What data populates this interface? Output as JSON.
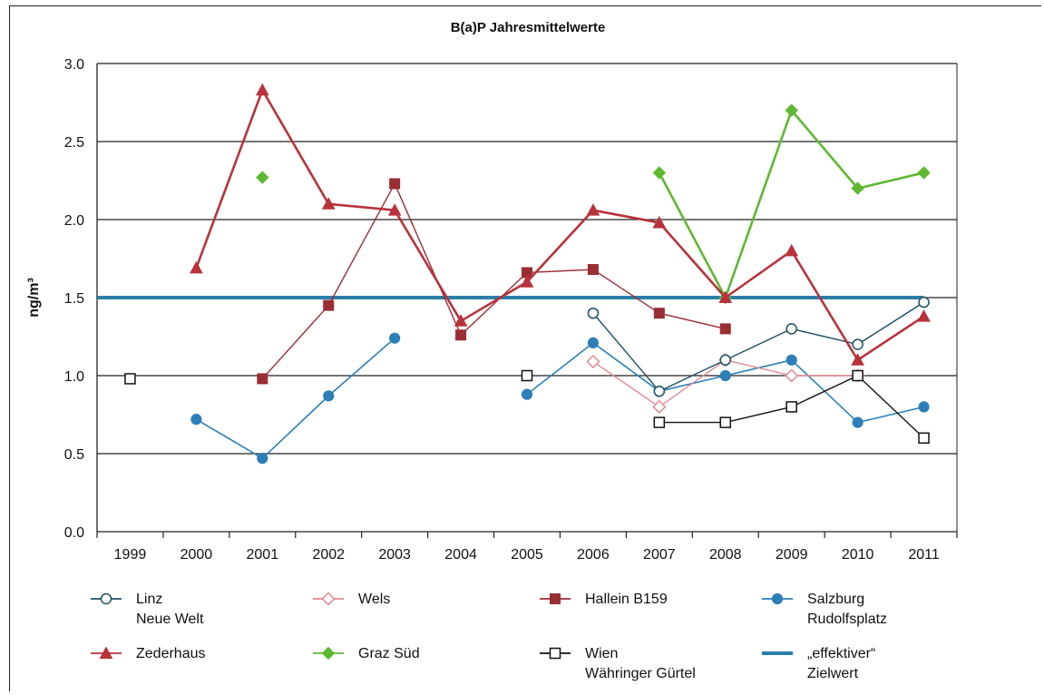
{
  "chart_data": {
    "type": "line",
    "title": "B(a)P Jahresmittelwerte",
    "ylabel": "ng/m³",
    "xlabel": "",
    "categories": [
      "1999",
      "2000",
      "2001",
      "2002",
      "2003",
      "2004",
      "2005",
      "2006",
      "2007",
      "2008",
      "2009",
      "2010",
      "2011"
    ],
    "ylim": [
      0,
      3
    ],
    "yticks": [
      "0.0",
      "0.5",
      "1.0",
      "1.5",
      "2.0",
      "2.5",
      "3.0"
    ],
    "grid": true,
    "legend_position": "bottom",
    "target_value": 1.5,
    "series": [
      {
        "name": "Linz\nNeue Welt",
        "color": "#1f4e5f",
        "marker": "circle-open",
        "values": [
          null,
          null,
          null,
          null,
          null,
          null,
          null,
          1.4,
          0.9,
          1.1,
          1.3,
          1.2,
          1.47
        ]
      },
      {
        "name": "Wels",
        "color": "#e08a90",
        "marker": "diamond-open",
        "values": [
          null,
          null,
          null,
          null,
          null,
          null,
          null,
          1.09,
          0.8,
          1.1,
          1.0,
          1.0,
          null
        ]
      },
      {
        "name": "Hallein B159",
        "color": "#9b2d35",
        "marker": "square",
        "values": [
          null,
          null,
          0.98,
          1.45,
          2.23,
          1.26,
          1.66,
          1.68,
          1.4,
          1.3,
          null,
          null,
          null
        ]
      },
      {
        "name": "Salzburg\nRudolfsplatz",
        "color": "#2e7fb8",
        "marker": "circle",
        "values": [
          null,
          0.72,
          0.47,
          0.87,
          1.24,
          null,
          0.88,
          1.21,
          0.9,
          1.0,
          1.1,
          0.7,
          0.8
        ]
      },
      {
        "name": "Zederhaus",
        "color": "#b8323c",
        "marker": "triangle",
        "values": [
          null,
          1.69,
          2.83,
          2.1,
          2.06,
          1.35,
          1.6,
          2.06,
          1.98,
          1.5,
          1.8,
          1.1,
          1.38
        ]
      },
      {
        "name": "Graz Süd",
        "color": "#5fb832",
        "marker": "diamond",
        "values": [
          null,
          null,
          2.27,
          null,
          null,
          null,
          null,
          null,
          2.3,
          1.5,
          2.7,
          2.2,
          2.3
        ]
      },
      {
        "name": "Wien\nWähringer Gürtel",
        "color": "#111111",
        "marker": "square-open",
        "values": [
          0.98,
          null,
          null,
          null,
          null,
          null,
          1.0,
          null,
          0.7,
          0.7,
          0.8,
          1.0,
          0.6
        ]
      },
      {
        "name": "„effektiver“\nZielwert",
        "color": "#2a7fa8",
        "marker": "none",
        "values": [
          1.5,
          1.5,
          1.5,
          1.5,
          1.5,
          1.5,
          1.5,
          1.5,
          1.5,
          1.5,
          1.5,
          1.5,
          1.5
        ]
      }
    ]
  }
}
